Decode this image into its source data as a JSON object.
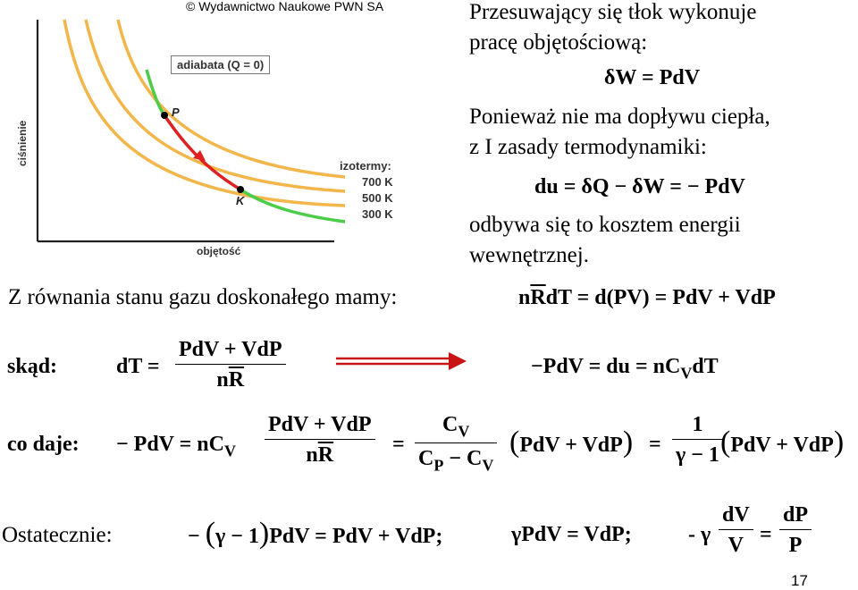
{
  "copyright": "© Wydawnictwo Naukowe PWN SA",
  "figure": {
    "ylabel": "ciśnienie",
    "xlabel": "objętość",
    "adiabat_label": "adiabata (Q = 0)",
    "point_p": "P",
    "point_k": "K",
    "legend_title": "izotermy:",
    "isotherms": [
      "700 K",
      "500 K",
      "300 K"
    ]
  },
  "right_text": {
    "line1": "Przesuwający się tłok wykonuje",
    "line2": "pracę objętościową:",
    "eq1": "δW = PdV",
    "line3": "Ponieważ nie ma dopływu ciepła,",
    "line4": "z I zasady termodynamiki:",
    "eq2": "du = δQ − δW = − PdV",
    "line5": "odbywa się to kosztem energii",
    "line6": "wewnętrznej."
  },
  "state_eq": {
    "label": "Z równania stanu gazu doskonałego mamy:",
    "n": "n",
    "R": "R",
    "rest": "dT = d(PV) = PdV + VdP"
  },
  "skad": {
    "label": "skąd:",
    "lhs": "dT =",
    "num": "PdV + VdP",
    "den_n": "n",
    "den_R": "R",
    "result": "−PdV = du = nC",
    "result_sub": "V",
    "result_tail": "dT"
  },
  "codaje": {
    "label": "co daje:",
    "lhs": "− PdV = nC",
    "lhs_sub": "V",
    "frac1_num": "PdV + VdP",
    "frac1_den_n": "n",
    "frac1_den_R": "R",
    "eq_sign": "=",
    "frac2_num": "C",
    "frac2_num_sub": "V",
    "frac2_den_a": "C",
    "frac2_den_a_sub": "P",
    "frac2_den_b": " − C",
    "frac2_den_b_sub": "V",
    "paren1": "PdV + VdP",
    "eq_sign2": "=",
    "frac3_num": "1",
    "frac3_den": "γ − 1",
    "paren2": "PdV + VdP"
  },
  "ostatecznie": {
    "label": "Ostatecznie:",
    "part1_pre": "−",
    "part1_paren": "γ − 1",
    "part1_post": "PdV = PdV + VdP;",
    "part2": "γPdV = VdP;",
    "part3_pre": "- γ",
    "frac_a_num": "dV",
    "frac_a_den": "V",
    "eq_sign": "=",
    "frac_b_num": "dP",
    "frac_b_den": "P"
  },
  "page_number": "17"
}
